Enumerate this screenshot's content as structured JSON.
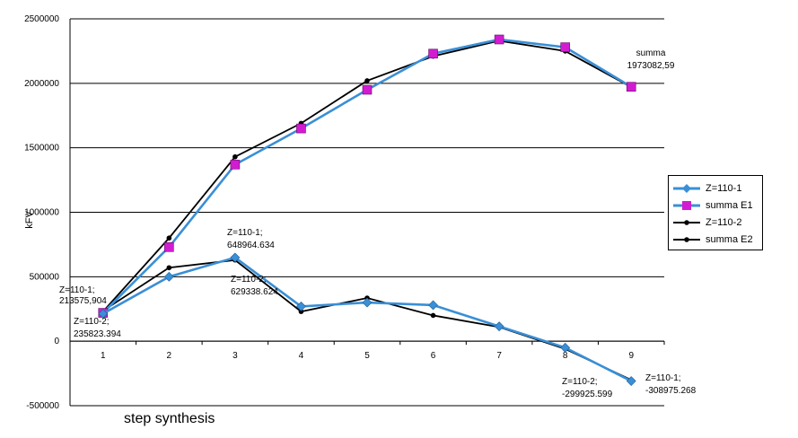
{
  "chart_data": {
    "type": "line",
    "ylabel": "kFV",
    "xlabel": "step synthesis",
    "categories": [
      "1",
      "2",
      "3",
      "4",
      "5",
      "6",
      "7",
      "8",
      "9"
    ],
    "ylim": [
      -500000,
      2500000
    ],
    "yticks": [
      "2500000",
      "2000000",
      "1500000",
      "1000000",
      "500000",
      "0",
      "-500000"
    ],
    "ytick_values": [
      2500000,
      2000000,
      1500000,
      1000000,
      500000,
      0,
      -500000
    ],
    "grid": "horizontal",
    "legend_position": "right",
    "series": [
      {
        "name": "Z=110-1",
        "color": "#3a8fd6",
        "marker": "diamond",
        "values": [
          213575.904,
          500000,
          648964.634,
          270000,
          300000,
          280000,
          115000,
          -50000,
          -308975.268
        ]
      },
      {
        "name": "summa E1",
        "color": "#3a8fd6",
        "marker_color": "#d21cd2",
        "marker": "square",
        "values": [
          220000,
          730000,
          1370000,
          1650000,
          1950000,
          2230000,
          2340000,
          2280000,
          1973082.59
        ]
      },
      {
        "name": "Z=110-2",
        "color": "#000000",
        "marker": "dot",
        "values": [
          235823.394,
          570000,
          629338.624,
          230000,
          335000,
          200000,
          110000,
          -60000,
          -299925.599
        ]
      },
      {
        "name": "summa E2",
        "color": "#000000",
        "marker": "dot",
        "values": [
          230000,
          800000,
          1430000,
          1690000,
          2020000,
          2210000,
          2330000,
          2250000,
          1970000
        ]
      }
    ],
    "annotations": [
      {
        "id": "ann-z1-p1",
        "lines": [
          "Z=110-1;",
          "213575,904"
        ]
      },
      {
        "id": "ann-z2-p1",
        "lines": [
          "Z=110-2;",
          "235823.394"
        ]
      },
      {
        "id": "ann-z1-p3",
        "lines": [
          "Z=110-1;",
          "648964.634"
        ]
      },
      {
        "id": "ann-z2-p3",
        "lines": [
          "Z=110-2;",
          "629338.624"
        ]
      },
      {
        "id": "ann-z2-p9",
        "lines": [
          "Z=110-2;",
          "-299925.599"
        ]
      },
      {
        "id": "ann-z1-p9",
        "lines": [
          "Z=110-1;",
          "-308975.268"
        ]
      },
      {
        "id": "ann-summa",
        "lines": [
          "summa",
          "1973082,59"
        ]
      }
    ]
  }
}
